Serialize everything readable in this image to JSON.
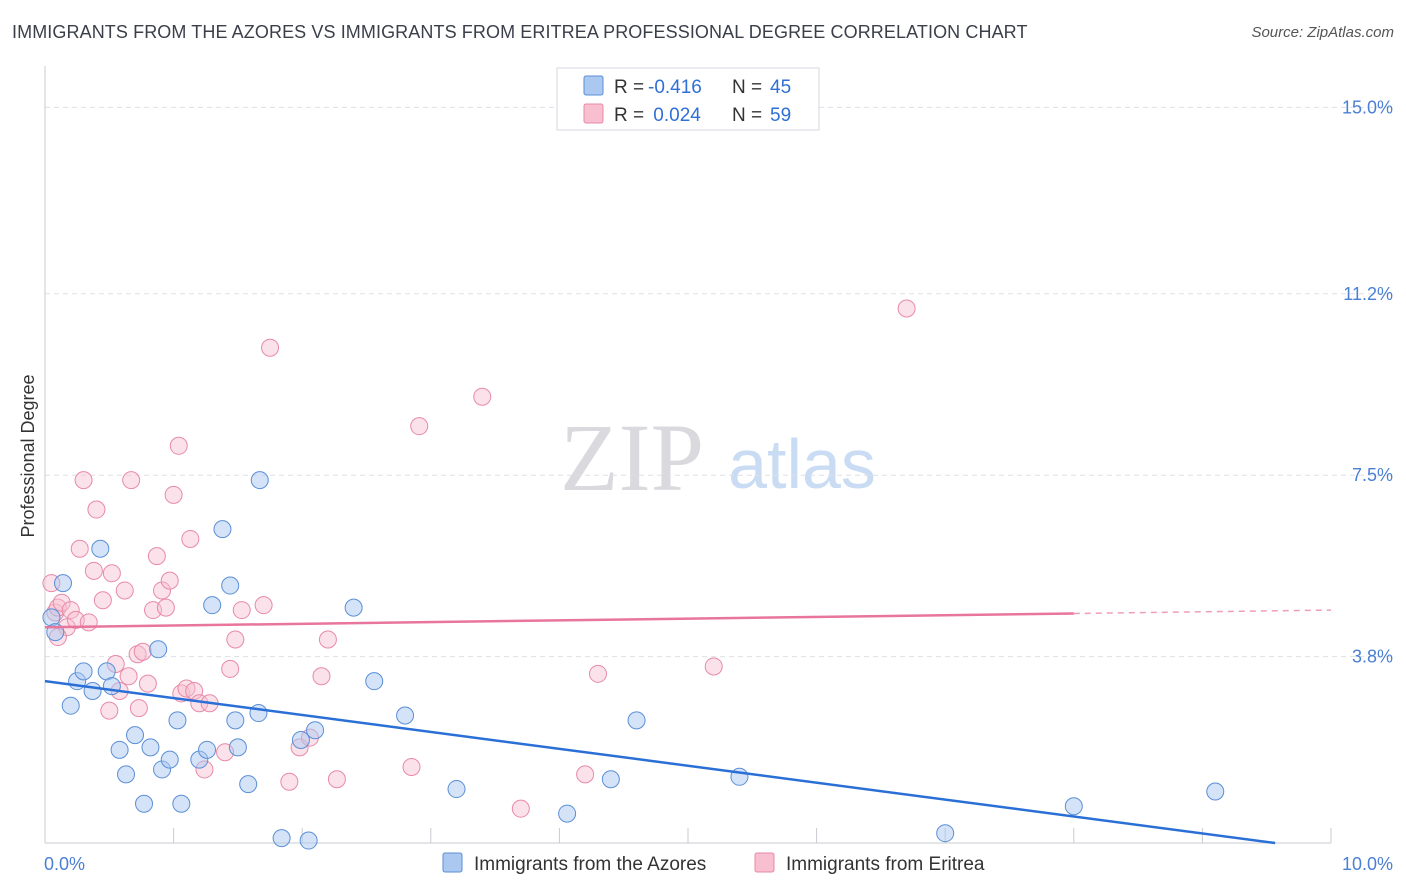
{
  "header": {
    "title": "IMMIGRANTS FROM THE AZORES VS IMMIGRANTS FROM ERITREA PROFESSIONAL DEGREE CORRELATION CHART",
    "source": "Source: ZipAtlas.com"
  },
  "watermark": {
    "zip": "ZIP",
    "atlas": "atlas"
  },
  "colors": {
    "azores_fill": "#aac8f0",
    "azores_stroke": "#5b8fd6",
    "azores_line": "#2a6fd6",
    "eritrea_fill": "#f7bfd0",
    "eritrea_stroke": "#e88aa8",
    "eritrea_line": "#e8759c",
    "grid": "#dde0e6",
    "tick_label": "#4a7fd4"
  },
  "legend": {
    "rows": [
      {
        "r_label": "R = ",
        "r_value": "-0.416",
        "n_label": "N = ",
        "n_value": "45"
      },
      {
        "r_label": "R = ",
        "r_value": " 0.024",
        "n_label": "N = ",
        "n_value": "59"
      }
    ]
  },
  "bottom_legend": {
    "azores": "Immigrants from the Azores",
    "eritrea": "Immigrants from Eritrea"
  },
  "chart_data": {
    "type": "scatter",
    "title": "IMMIGRANTS FROM THE AZORES VS IMMIGRANTS FROM ERITREA PROFESSIONAL DEGREE CORRELATION CHART",
    "xlabel": "",
    "ylabel": "Professional Degree",
    "xlim": [
      0,
      10
    ],
    "ylim": [
      0,
      15.6
    ],
    "x_tick_labels": [
      "0.0%",
      "10.0%"
    ],
    "y_ticks": [
      3.8,
      7.5,
      11.2,
      15.0
    ],
    "y_tick_labels": [
      "3.8%",
      "7.5%",
      "11.2%",
      "15.0%"
    ],
    "grid": true,
    "legend_position": "top-center",
    "series": [
      {
        "name": "Immigrants from the Azores",
        "R": -0.416,
        "N": 45,
        "trend": {
          "x": [
            0,
            10
          ],
          "y": [
            3.3,
            -0.15
          ],
          "dashed_from": null
        },
        "points": [
          [
            0.05,
            4.6
          ],
          [
            0.08,
            4.3
          ],
          [
            0.14,
            5.3
          ],
          [
            0.2,
            2.8
          ],
          [
            0.25,
            3.3
          ],
          [
            0.3,
            3.5
          ],
          [
            0.37,
            3.1
          ],
          [
            0.43,
            6.0
          ],
          [
            0.48,
            3.5
          ],
          [
            0.52,
            3.2
          ],
          [
            0.58,
            1.9
          ],
          [
            0.63,
            1.4
          ],
          [
            0.7,
            2.2
          ],
          [
            0.77,
            0.8
          ],
          [
            0.82,
            1.95
          ],
          [
            0.88,
            3.95
          ],
          [
            0.91,
            1.5
          ],
          [
            0.97,
            1.7
          ],
          [
            1.03,
            2.5
          ],
          [
            1.06,
            0.8
          ],
          [
            1.2,
            1.7
          ],
          [
            1.26,
            1.9
          ],
          [
            1.3,
            4.85
          ],
          [
            1.38,
            6.4
          ],
          [
            1.44,
            5.25
          ],
          [
            1.48,
            2.5
          ],
          [
            1.5,
            1.95
          ],
          [
            1.58,
            1.2
          ],
          [
            1.66,
            2.65
          ],
          [
            1.67,
            7.4
          ],
          [
            1.84,
            0.1
          ],
          [
            1.99,
            2.1
          ],
          [
            2.05,
            0.05
          ],
          [
            2.1,
            2.3
          ],
          [
            2.4,
            4.8
          ],
          [
            2.56,
            3.3
          ],
          [
            2.8,
            2.6
          ],
          [
            3.2,
            1.1
          ],
          [
            4.06,
            0.6
          ],
          [
            4.4,
            1.3
          ],
          [
            4.6,
            2.5
          ],
          [
            5.4,
            1.35
          ],
          [
            7.0,
            0.2
          ],
          [
            8.0,
            0.75
          ],
          [
            9.1,
            1.05
          ]
        ]
      },
      {
        "name": "Immigrants from Eritrea",
        "R": 0.024,
        "N": 59,
        "trend": {
          "x": [
            0,
            10
          ],
          "y": [
            4.4,
            4.75
          ],
          "dashed_from": 8.0
        },
        "points": [
          [
            0.05,
            5.3
          ],
          [
            0.08,
            4.7
          ],
          [
            0.1,
            4.8
          ],
          [
            0.13,
            4.9
          ],
          [
            0.17,
            4.4
          ],
          [
            0.2,
            4.75
          ],
          [
            0.24,
            4.55
          ],
          [
            0.27,
            6.0
          ],
          [
            0.3,
            7.4
          ],
          [
            0.34,
            4.5
          ],
          [
            0.4,
            6.8
          ],
          [
            0.38,
            5.55
          ],
          [
            0.45,
            4.95
          ],
          [
            0.5,
            2.7
          ],
          [
            0.52,
            5.5
          ],
          [
            0.55,
            3.65
          ],
          [
            0.58,
            3.1
          ],
          [
            0.62,
            5.15
          ],
          [
            0.65,
            3.4
          ],
          [
            0.67,
            7.4
          ],
          [
            0.72,
            3.85
          ],
          [
            0.73,
            2.75
          ],
          [
            0.76,
            3.9
          ],
          [
            0.8,
            3.25
          ],
          [
            0.84,
            4.75
          ],
          [
            0.87,
            5.85
          ],
          [
            0.91,
            5.15
          ],
          [
            0.94,
            4.8
          ],
          [
            0.97,
            5.35
          ],
          [
            1.0,
            7.1
          ],
          [
            1.04,
            8.1
          ],
          [
            1.06,
            3.05
          ],
          [
            1.1,
            3.15
          ],
          [
            1.13,
            6.2
          ],
          [
            1.16,
            3.1
          ],
          [
            1.2,
            2.85
          ],
          [
            1.24,
            1.5
          ],
          [
            1.28,
            2.85
          ],
          [
            1.4,
            1.85
          ],
          [
            1.44,
            3.55
          ],
          [
            1.48,
            4.15
          ],
          [
            1.53,
            4.75
          ],
          [
            1.7,
            4.85
          ],
          [
            1.75,
            10.1
          ],
          [
            1.9,
            1.25
          ],
          [
            1.98,
            1.95
          ],
          [
            2.06,
            2.15
          ],
          [
            2.15,
            3.4
          ],
          [
            2.2,
            4.15
          ],
          [
            2.27,
            1.3
          ],
          [
            2.85,
            1.55
          ],
          [
            2.91,
            8.5
          ],
          [
            3.4,
            9.1
          ],
          [
            3.7,
            0.7
          ],
          [
            4.2,
            1.4
          ],
          [
            4.3,
            3.45
          ],
          [
            5.2,
            3.6
          ],
          [
            6.7,
            10.9
          ],
          [
            0.1,
            4.2
          ]
        ]
      }
    ]
  }
}
